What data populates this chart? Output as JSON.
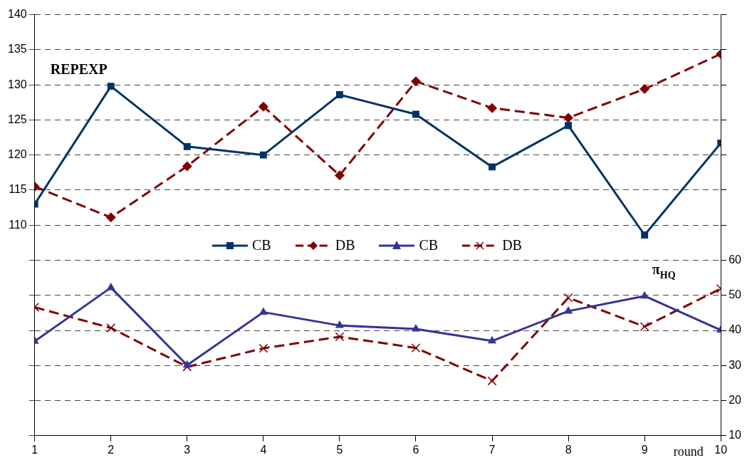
{
  "chart_data": {
    "type": "line",
    "xlabel": "round",
    "annotations": [
      "REPEXP",
      "π$_{HQ}$"
    ],
    "x": [
      1,
      2,
      3,
      4,
      5,
      6,
      7,
      8,
      9,
      10
    ],
    "xlim": [
      1,
      10
    ],
    "xticks": [
      1,
      2,
      3,
      4,
      5,
      6,
      7,
      8,
      9,
      10
    ],
    "ylim": [
      80,
      140
    ],
    "yticks": [
      {
        "value": 80,
        "label": null
      },
      {
        "value": 85,
        "label": null
      },
      {
        "value": 90,
        "label": null
      },
      {
        "value": 95,
        "label": null
      },
      {
        "value": 100,
        "label": null
      },
      {
        "value": 105,
        "label": null
      },
      110,
      115,
      120,
      125,
      130,
      135,
      140
    ],
    "y2lim": [
      10,
      130
    ],
    "y2ticks": [
      10,
      20,
      30,
      40,
      50,
      60,
      {
        "value": 70,
        "label": null
      },
      {
        "value": 80,
        "label": null
      },
      {
        "value": 90,
        "label": null
      },
      {
        "value": 100,
        "label": null
      },
      {
        "value": 110,
        "label": null
      },
      {
        "value": 120,
        "label": null
      },
      {
        "value": 130,
        "label": null
      }
    ],
    "grid": "y",
    "legend": "center",
    "series": [
      {
        "name": "CB",
        "color": "#003366",
        "marker": "square",
        "line_style": "solid",
        "values": [
          113.0,
          129.8,
          121.2,
          120.0,
          128.6,
          125.8,
          118.3,
          124.2,
          108.6,
          121.7
        ]
      },
      {
        "name": "DB",
        "color": "#800000",
        "marker": "diamond",
        "line_style": "dashed",
        "values": [
          115.5,
          111.1,
          118.4,
          126.9,
          117.1,
          130.5,
          126.7,
          125.3,
          129.4,
          134.4
        ]
      },
      {
        "name": "CB",
        "color": "#333399",
        "marker": "triangle",
        "line_style": "solid",
        "axis": "y2",
        "values": [
          36.9,
          52.2,
          30.1,
          45.2,
          41.4,
          40.4,
          37.0,
          45.5,
          49.8,
          40.1
        ]
      },
      {
        "name": "DB",
        "color": "#800000",
        "marker": "cross",
        "line_style": "dashed",
        "axis": "y2",
        "values": [
          46.6,
          40.7,
          29.6,
          34.9,
          38.2,
          35.0,
          25.6,
          49.3,
          41.1,
          51.9
        ]
      }
    ]
  }
}
